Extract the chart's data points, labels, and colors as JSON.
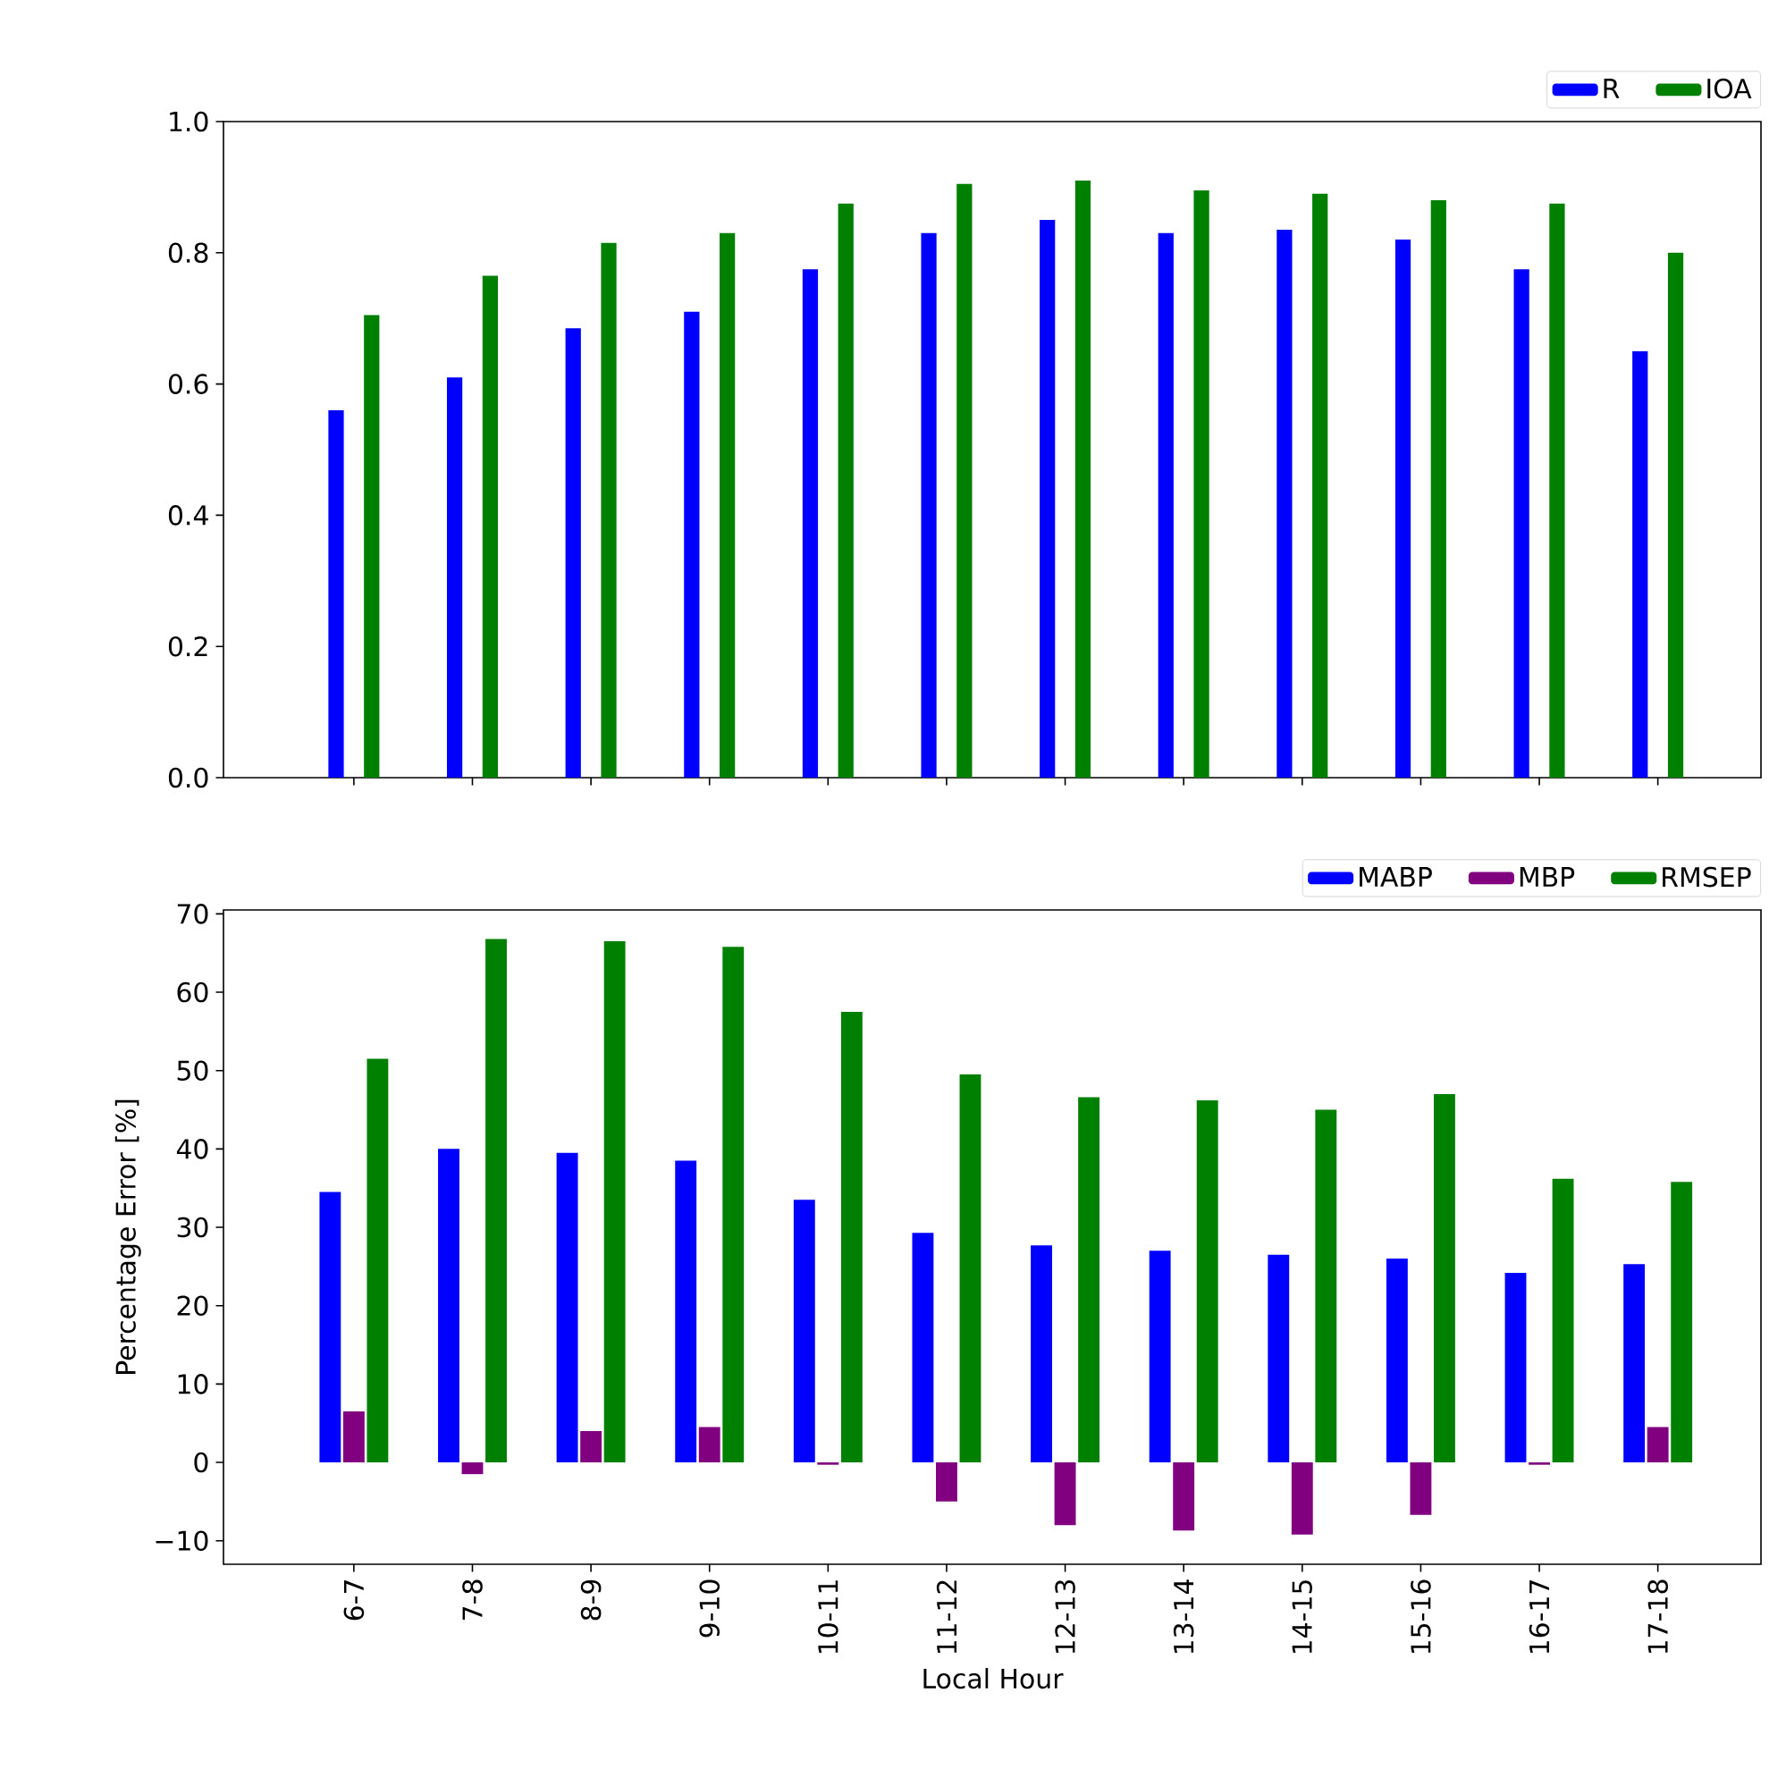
{
  "chart_data": [
    {
      "type": "bar",
      "categories": [
        null,
        null,
        null,
        null,
        null,
        null,
        null,
        null,
        null,
        null,
        null,
        null
      ],
      "ylim": [
        0,
        1
      ],
      "yticks": [
        {
          "value": 0,
          "label": "0.0"
        },
        {
          "value": 0.2,
          "label": "0.2"
        },
        {
          "value": 0.4,
          "label": "0.4"
        },
        {
          "value": 0.6,
          "label": "0.6"
        },
        {
          "value": 0.8,
          "label": "0.8"
        },
        {
          "value": 1,
          "label": "1.0"
        }
      ],
      "tick_labels": "y",
      "legend": "top right",
      "series": [
        {
          "name": "R",
          "color": "#0000ff",
          "values": [
            0.56,
            0.61,
            0.685,
            0.71,
            0.775,
            0.83,
            0.85,
            0.83,
            0.835,
            0.82,
            0.775,
            0.65
          ]
        },
        {
          "name": "IOA",
          "color": "#008000",
          "values": [
            0.705,
            0.765,
            0.815,
            0.83,
            0.875,
            0.905,
            0.91,
            0.895,
            0.89,
            0.88,
            0.875,
            0.8
          ]
        }
      ]
    },
    {
      "type": "bar",
      "categories": [
        "6-7",
        "7-8",
        "8-9",
        "9-10",
        "10-11",
        "11-12",
        "12-13",
        "13-14",
        "14-15",
        "15-16",
        "16-17",
        "17-18"
      ],
      "xlabel": "Local Hour",
      "ylabel": "Percentage Error [%]",
      "ylim": [
        -13,
        70.5
      ],
      "yticks": [
        {
          "value": -10,
          "label": "−10"
        },
        0,
        10,
        20,
        30,
        40,
        50,
        60,
        70
      ],
      "legend": "top right",
      "series": [
        {
          "name": "MABP",
          "color": "#0000ff",
          "values": [
            34.5,
            40,
            39.5,
            38.5,
            33.5,
            29.3,
            27.7,
            27,
            26.5,
            26,
            24.2,
            25.3
          ]
        },
        {
          "name": "MBP",
          "color": "#800080",
          "values": [
            6.5,
            -1.5,
            4,
            4.5,
            -0.3,
            -5,
            -8,
            -8.7,
            -9.2,
            -6.7,
            -0.3,
            4.5
          ]
        },
        {
          "name": "RMSEP",
          "color": "#008000",
          "values": [
            51.5,
            66.8,
            66.5,
            65.8,
            57.5,
            49.5,
            46.6,
            46.2,
            45,
            47,
            36.2,
            35.8
          ]
        }
      ]
    }
  ]
}
